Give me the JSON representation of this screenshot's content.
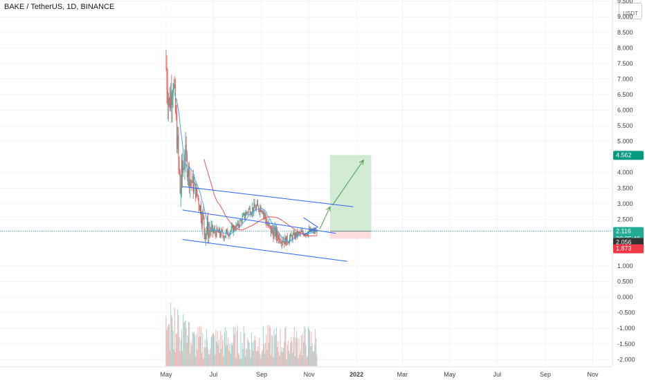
{
  "header": {
    "symbol_title": "BAKE / TetherUS, 1D, BINANCE",
    "currency_top": "USDT"
  },
  "price_badges": {
    "last": "2.116",
    "countdown": "20:35:49",
    "previous": "2.056",
    "stop": "1.873",
    "target": "4.562"
  },
  "colors": {
    "up": "#26a69a",
    "down": "#ef5350",
    "channel": "#2962ff",
    "ema": "#ef5350",
    "ma": "#42a5f5",
    "target_zone": "#c8e6c9",
    "stop_zone": "#ffcdd2",
    "arrow": "#43a047",
    "badge_green": "#22ab94",
    "badge_grey": "#333333",
    "badge_red": "#f23645",
    "badge_target": "#089981"
  },
  "chart_data": {
    "type": "candlestick",
    "title": "BAKE / TetherUS, 1D, BINANCE",
    "x_axis_ticks": [
      "May",
      "Jul",
      "Sep",
      "Nov",
      "2022",
      "Mar",
      "May",
      "Jul",
      "Sep",
      "Nov"
    ],
    "y_axis_ticks": [
      "9.500",
      "9.000",
      "8.500",
      "8.000",
      "7.500",
      "7.000",
      "6.500",
      "6.000",
      "5.500",
      "5.000",
      "4.000",
      "3.500",
      "3.000",
      "2.500",
      "1.000",
      "0.500",
      "0.000",
      "-0.500",
      "-1.000",
      "-1.500",
      "-2.000"
    ],
    "y_range": [
      -2.3,
      9.6
    ],
    "x_range": [
      "2021-04-15",
      "2022-12-10"
    ],
    "last_price": 2.116,
    "ohlc_approx": [
      {
        "date": "2021-05-01",
        "open": 6.0,
        "high": 8.5,
        "low": 4.2,
        "close": 7.4
      },
      {
        "date": "2021-05-05",
        "open": 7.4,
        "high": 8.0,
        "low": 5.5,
        "close": 6.2
      },
      {
        "date": "2021-05-10",
        "open": 6.2,
        "high": 7.9,
        "low": 5.3,
        "close": 7.0
      },
      {
        "date": "2021-05-15",
        "open": 7.0,
        "high": 7.2,
        "low": 4.8,
        "close": 5.2
      },
      {
        "date": "2021-05-19",
        "open": 5.2,
        "high": 5.5,
        "low": 2.3,
        "close": 3.4
      },
      {
        "date": "2021-05-25",
        "open": 3.4,
        "high": 5.2,
        "low": 3.2,
        "close": 4.6
      },
      {
        "date": "2021-06-01",
        "open": 4.6,
        "high": 4.9,
        "low": 3.3,
        "close": 3.8
      },
      {
        "date": "2021-06-10",
        "open": 3.8,
        "high": 4.0,
        "low": 3.0,
        "close": 3.3
      },
      {
        "date": "2021-06-20",
        "open": 3.3,
        "high": 3.5,
        "low": 1.7,
        "close": 2.2
      },
      {
        "date": "2021-07-01",
        "open": 2.2,
        "high": 2.6,
        "low": 1.9,
        "close": 2.1
      },
      {
        "date": "2021-07-15",
        "open": 2.1,
        "high": 2.5,
        "low": 1.8,
        "close": 2.0
      },
      {
        "date": "2021-08-01",
        "open": 2.0,
        "high": 2.4,
        "low": 1.9,
        "close": 2.3
      },
      {
        "date": "2021-08-15",
        "open": 2.3,
        "high": 2.9,
        "low": 2.2,
        "close": 2.8
      },
      {
        "date": "2021-09-01",
        "open": 2.8,
        "high": 3.3,
        "low": 2.5,
        "close": 2.9
      },
      {
        "date": "2021-09-10",
        "open": 2.9,
        "high": 3.0,
        "low": 1.9,
        "close": 2.2
      },
      {
        "date": "2021-10-01",
        "open": 2.2,
        "high": 2.3,
        "low": 1.6,
        "close": 1.8
      },
      {
        "date": "2021-10-15",
        "open": 1.8,
        "high": 2.2,
        "low": 1.7,
        "close": 2.0
      },
      {
        "date": "2021-11-01",
        "open": 2.0,
        "high": 2.4,
        "low": 1.8,
        "close": 2.1
      },
      {
        "date": "2021-11-12",
        "open": 2.1,
        "high": 2.3,
        "low": 2.0,
        "close": 2.116
      }
    ],
    "annotations": {
      "upper_channel": [
        {
          "x": "2021-05-22",
          "y": 3.55
        },
        {
          "x": "2021-12-28",
          "y": 2.9
        }
      ],
      "mid_channel": [
        {
          "x": "2021-05-22",
          "y": 2.8
        },
        {
          "x": "2021-12-05",
          "y": 2.05
        }
      ],
      "lower_channel": [
        {
          "x": "2021-05-22",
          "y": 1.85
        },
        {
          "x": "2021-12-20",
          "y": 1.15
        }
      ],
      "target_price": 4.562,
      "entry_price": 2.116,
      "stop_price": 1.873
    }
  }
}
